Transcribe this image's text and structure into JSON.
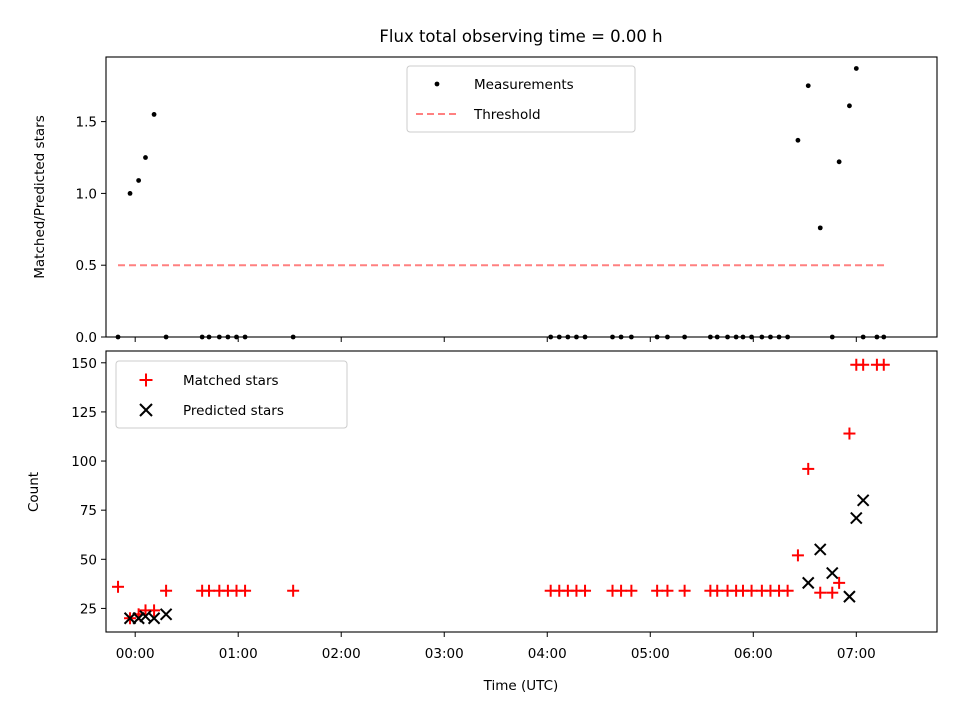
{
  "title": "Flux total observing time = 0.00 h",
  "colors": {
    "measure": "#000000",
    "threshold": "#ff8080",
    "matched": "#ff0000",
    "predicted": "#000000"
  },
  "chart_data": [
    {
      "type": "scatter",
      "ylabel": "Matched/Predicted stars",
      "ylim": [
        0,
        1.95
      ],
      "yticks": [
        0.0,
        0.5,
        1.0,
        1.5
      ],
      "legend": {
        "placement": "top-center",
        "entries": [
          "Measurements",
          "Threshold"
        ]
      },
      "series": [
        {
          "name": "Measurements",
          "x": [
            "23:50",
            "23:57",
            "00:02",
            "00:06",
            "00:11",
            "00:18",
            "00:39",
            "00:43",
            "00:49",
            "00:54",
            "00:59",
            "01:04",
            "01:32",
            "04:02",
            "04:07",
            "04:12",
            "04:17",
            "04:22",
            "04:38",
            "04:43",
            "04:49",
            "05:04",
            "05:10",
            "05:20",
            "05:35",
            "05:39",
            "05:45",
            "05:50",
            "05:54",
            "05:59",
            "06:05",
            "06:10",
            "06:15",
            "06:20",
            "06:26",
            "06:32",
            "06:39",
            "06:46",
            "06:50",
            "06:56",
            "07:00",
            "07:04",
            "07:12",
            "07:16"
          ],
          "y": [
            0,
            1.0,
            1.09,
            1.25,
            1.55,
            0,
            0,
            0,
            0,
            0,
            0,
            0,
            0,
            0,
            0,
            0,
            0,
            0,
            0,
            0,
            0,
            0,
            0,
            0,
            0,
            0,
            0,
            0,
            0,
            0,
            0,
            0,
            0,
            0,
            1.37,
            1.75,
            0.76,
            0,
            1.22,
            1.61,
            1.87,
            0,
            0,
            0
          ]
        },
        {
          "name": "Threshold",
          "x": [
            "23:50",
            "07:18"
          ],
          "y": [
            0.5,
            0.5
          ]
        }
      ]
    },
    {
      "type": "scatter",
      "xlabel": "Time (UTC)",
      "ylabel": "Count",
      "ylim": [
        13,
        156
      ],
      "yticks": [
        25,
        50,
        75,
        100,
        125,
        150
      ],
      "xlim": [
        "23:43",
        "07:47"
      ],
      "xticks": [
        "00:00",
        "01:00",
        "02:00",
        "03:00",
        "04:00",
        "05:00",
        "06:00",
        "07:00"
      ],
      "legend": {
        "placement": "top-left",
        "entries": [
          "Matched stars",
          "Predicted stars"
        ]
      },
      "series": [
        {
          "name": "Matched stars",
          "x": [
            "23:50",
            "23:57",
            "00:02",
            "00:06",
            "00:11",
            "00:18",
            "00:39",
            "00:43",
            "00:49",
            "00:54",
            "00:59",
            "01:04",
            "01:32",
            "04:02",
            "04:07",
            "04:12",
            "04:17",
            "04:22",
            "04:38",
            "04:43",
            "04:49",
            "05:04",
            "05:10",
            "05:20",
            "05:35",
            "05:39",
            "05:45",
            "05:50",
            "05:54",
            "05:59",
            "06:05",
            "06:10",
            "06:15",
            "06:20",
            "06:26",
            "06:32",
            "06:39",
            "06:46",
            "06:50",
            "06:56",
            "07:00",
            "07:04",
            "07:12",
            "07:16"
          ],
          "y": [
            36,
            20,
            22,
            24,
            24,
            34,
            34,
            34,
            34,
            34,
            34,
            34,
            34,
            34,
            34,
            34,
            34,
            34,
            34,
            34,
            34,
            34,
            34,
            34,
            34,
            34,
            34,
            34,
            34,
            34,
            34,
            34,
            34,
            34,
            52,
            96,
            33,
            33,
            38,
            114,
            149,
            149,
            149,
            149
          ]
        },
        {
          "name": "Predicted stars",
          "x": [
            "23:57",
            "00:02",
            "00:06",
            "00:11",
            "00:18",
            "06:32",
            "06:39",
            "06:46",
            "06:56",
            "07:00",
            "07:04"
          ],
          "y": [
            20,
            20,
            21,
            20,
            22,
            38,
            55,
            43,
            31,
            71,
            80
          ]
        }
      ]
    }
  ]
}
